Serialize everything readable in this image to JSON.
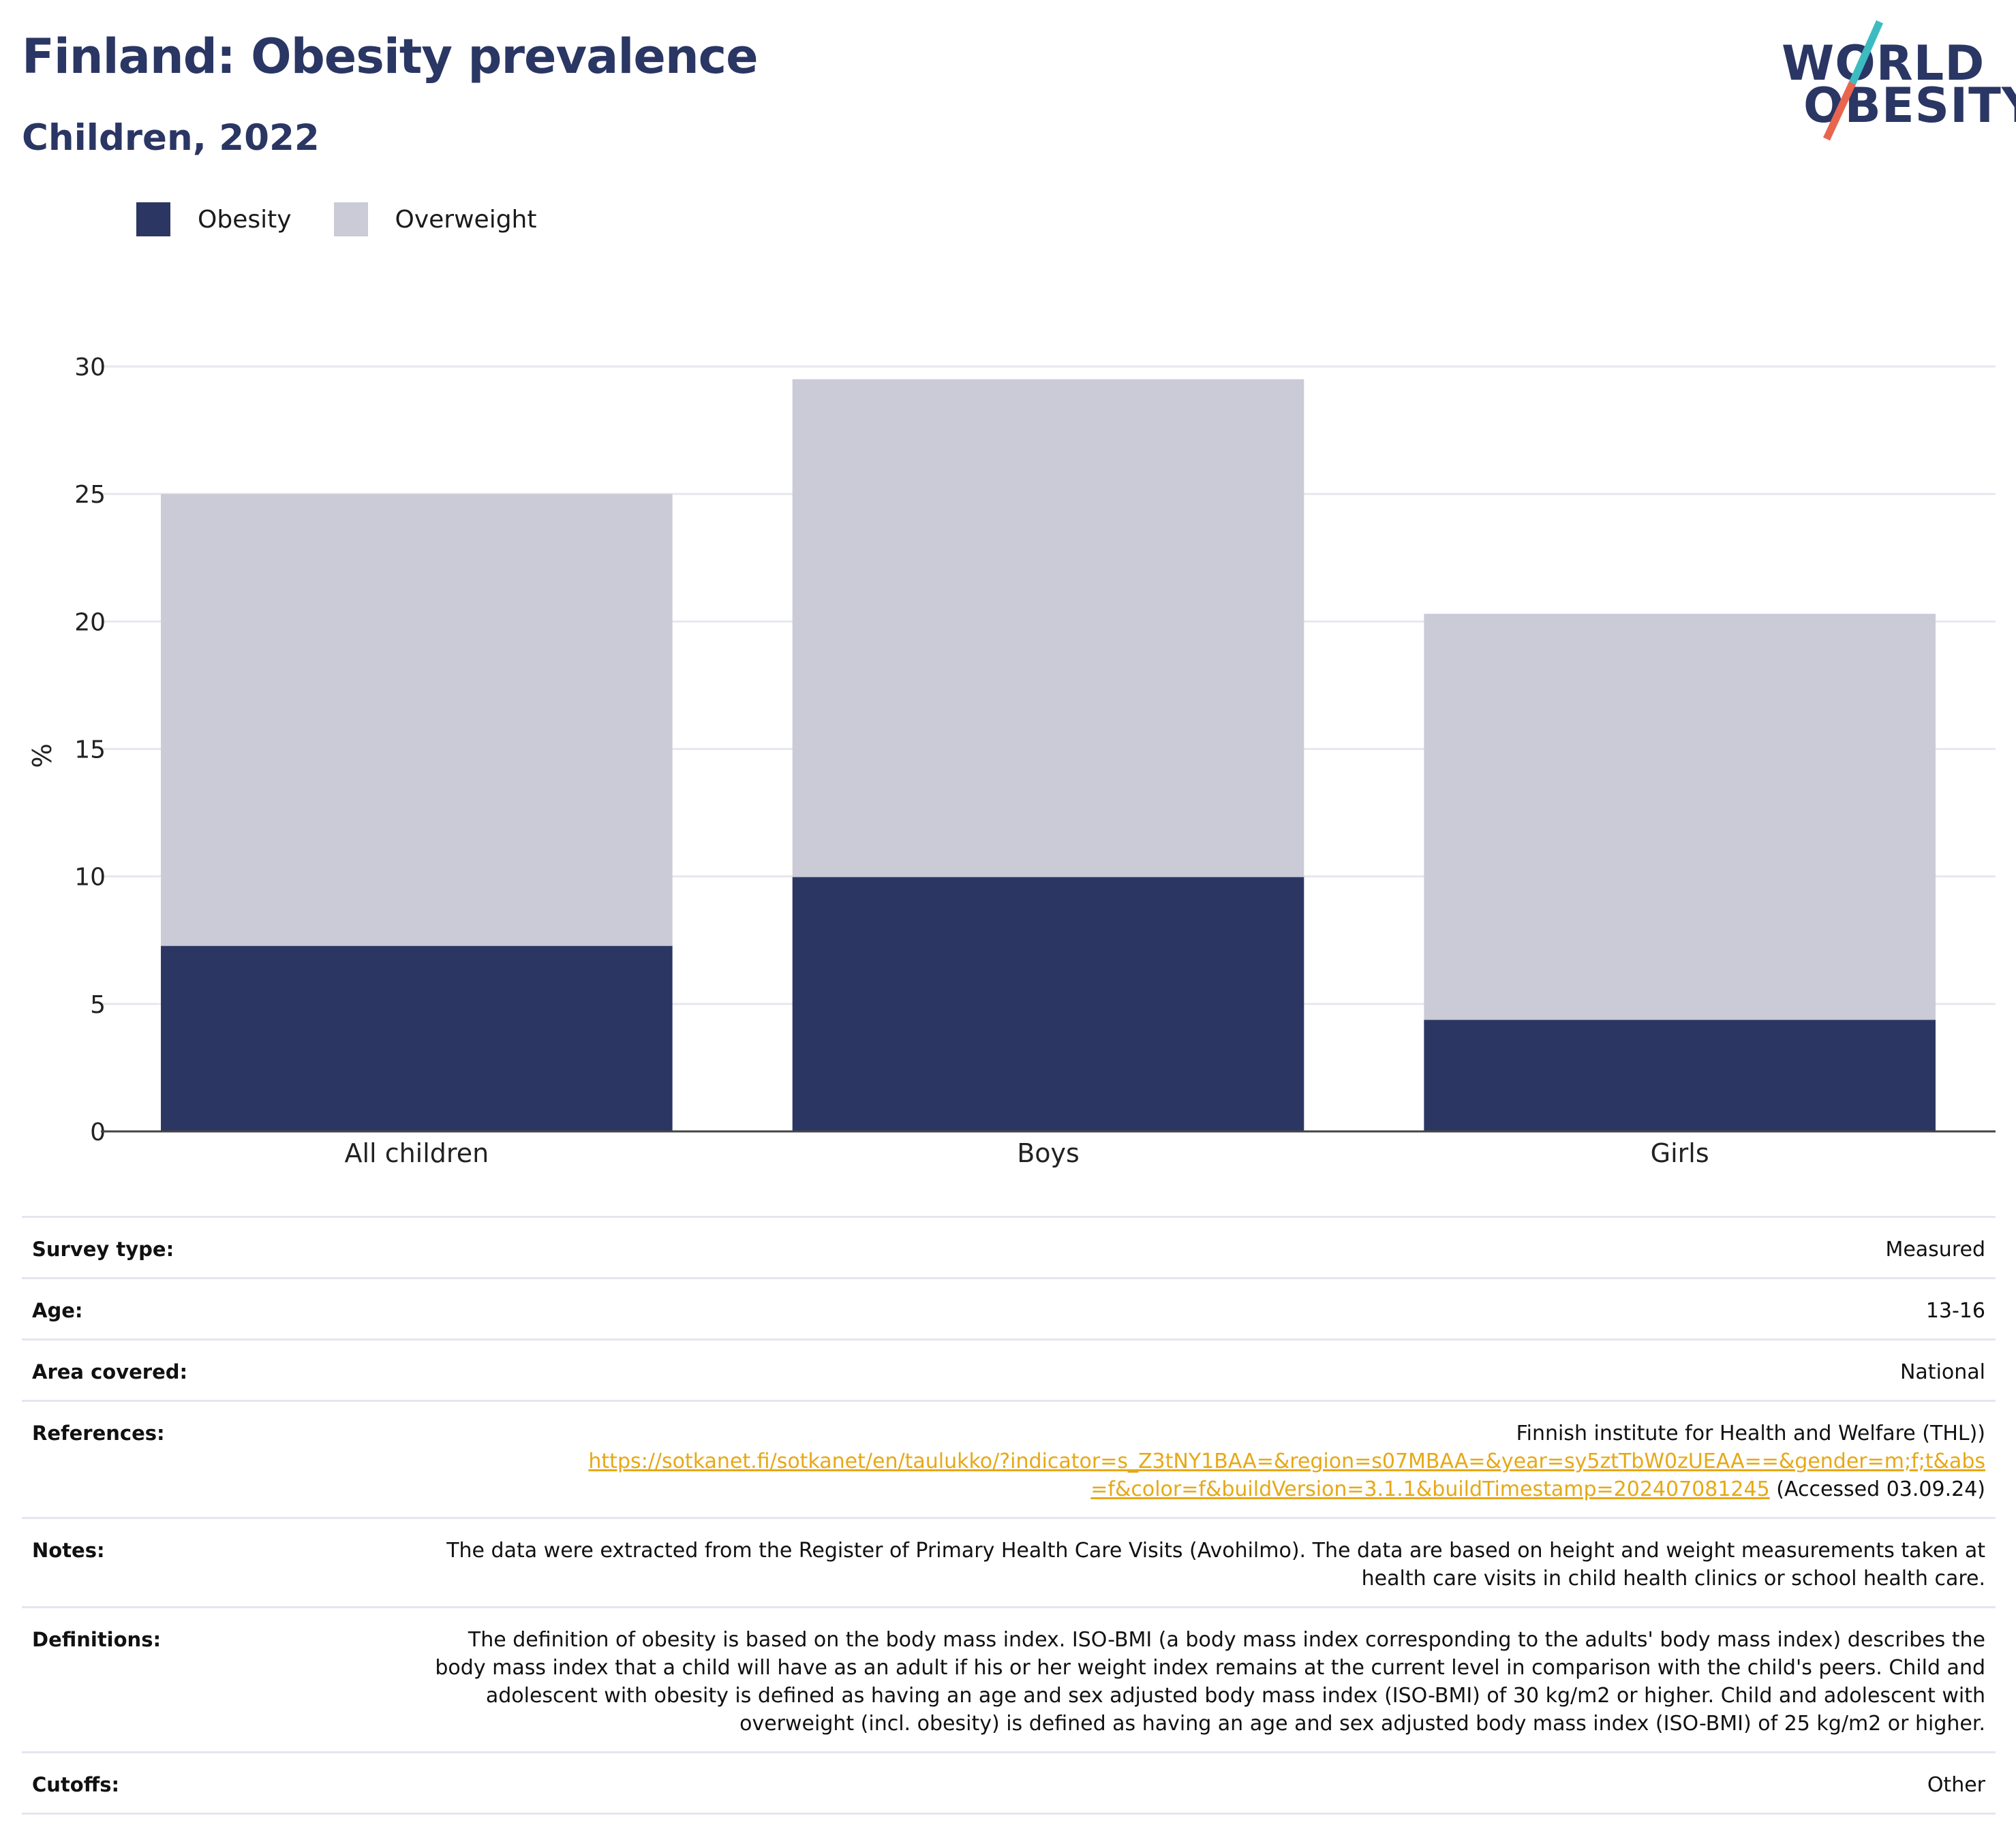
{
  "header": {
    "title": "Finland: Obesity prevalence",
    "subtitle": "Children, 2022"
  },
  "logo": {
    "line1": "WORLD",
    "line2": "OBESITY",
    "slash_colors": [
      "#3cbcc0",
      "#e8654f"
    ]
  },
  "colors": {
    "obesity": "#2b3663",
    "overweight": "#cacbd6",
    "grid": "#e6e7ef",
    "axis": "#444444",
    "link": "#e6a817"
  },
  "chart_data": {
    "type": "bar",
    "stacked": true,
    "categories": [
      "All children",
      "Boys",
      "Girls"
    ],
    "series": [
      {
        "name": "Obesity",
        "values": [
          7.3,
          10.0,
          4.4
        ]
      },
      {
        "name": "Overweight",
        "values": [
          17.7,
          19.5,
          15.9
        ]
      }
    ],
    "totals": [
      25.0,
      29.5,
      20.3
    ],
    "ylabel": "%",
    "ylim": [
      0,
      30
    ],
    "yticks": [
      0,
      5,
      10,
      15,
      20,
      25,
      30
    ],
    "grid": true,
    "legend_position": "top-left"
  },
  "info": {
    "rows": [
      {
        "label": "Survey type:",
        "value": "Measured"
      },
      {
        "label": "Age:",
        "value": "13-16"
      },
      {
        "label": "Area covered:",
        "value": "National"
      },
      {
        "label": "References:",
        "source": "Finnish institute for Health and Welfare (THL))",
        "link_line1": "https://sotkanet.fi/sotkanet/en/taulukko/?indicator=s_Z3tNY1BAA=&region=s07MBAA=&year=sy5ztTbW0zUEAA==&gender=m;f;t&abs",
        "link_line2": "=f&color=f&buildVersion=3.1.1&buildTimestamp=202407081245",
        "accessed": "(Accessed 03.09.24)"
      },
      {
        "label": "Notes:",
        "value": "The data were extracted from the Register of Primary Health Care Visits (Avohilmo). The data are based on height and weight measurements taken at health care visits in child health clinics or school health care."
      },
      {
        "label": "Definitions:",
        "value": "The definition of obesity is based on the body mass index. ISO-BMI (a body mass index corresponding to the adults' body mass index) describes the body mass index that a child will have as an adult if his or her weight index remains at the current level in comparison with the child's peers. Child and adolescent with obesity is defined as having an age and sex adjusted body mass index (ISO-BMI) of 30 kg/m2 or higher. Child and adolescent with overweight (incl. obesity) is defined as having an age and sex adjusted body mass index (ISO-BMI) of 25 kg/m2 or higher."
      },
      {
        "label": "Cutoffs:",
        "value": "Other"
      }
    ]
  }
}
